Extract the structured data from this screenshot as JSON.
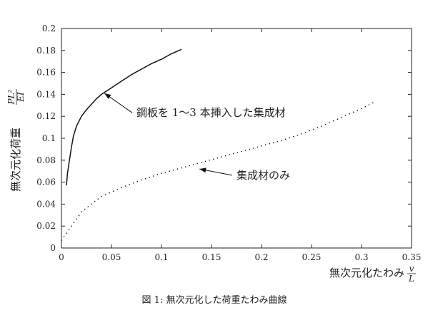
{
  "chart_data": {
    "type": "line",
    "title": "",
    "xlabel": "無次元化たわみ v/L",
    "xlabel_text": "無次元化たわみ",
    "xlabel_frac": {
      "num": "v",
      "den": "L"
    },
    "ylabel": "無次元化荷重 PL²/EI",
    "ylabel_text": "無次元化荷重",
    "ylabel_frac": {
      "num": "PL²",
      "den": "EI"
    },
    "xlim": [
      0,
      0.35
    ],
    "ylim": [
      0,
      0.2
    ],
    "x_ticks": [
      "0",
      "0.05",
      "0.1",
      "0.15",
      "0.2",
      "0.25",
      "0.3",
      "0.35"
    ],
    "y_ticks": [
      "0",
      "0.02",
      "0.04",
      "0.06",
      "0.08",
      "0.1",
      "0.12",
      "0.14",
      "0.16",
      "0.18",
      "0.2"
    ],
    "grid": false,
    "series": [
      {
        "name": "鋼板を 1〜3 本挿入した集成材",
        "style": "solid",
        "x": [
          0.005,
          0.006,
          0.008,
          0.01,
          0.012,
          0.015,
          0.02,
          0.025,
          0.03,
          0.035,
          0.04,
          0.05,
          0.06,
          0.07,
          0.08,
          0.09,
          0.1,
          0.11,
          0.12
        ],
        "y": [
          0.057,
          0.068,
          0.08,
          0.092,
          0.102,
          0.111,
          0.12,
          0.126,
          0.131,
          0.136,
          0.14,
          0.146,
          0.152,
          0.158,
          0.163,
          0.168,
          0.172,
          0.177,
          0.181
        ]
      },
      {
        "name": "集成材のみ",
        "style": "dotted",
        "x": [
          0.0,
          0.02,
          0.04,
          0.06,
          0.08,
          0.1,
          0.12,
          0.14,
          0.16,
          0.18,
          0.2,
          0.22,
          0.24,
          0.26,
          0.28,
          0.3,
          0.315
        ],
        "y": [
          0.007,
          0.033,
          0.047,
          0.055,
          0.062,
          0.068,
          0.073,
          0.078,
          0.083,
          0.088,
          0.093,
          0.098,
          0.104,
          0.111,
          0.119,
          0.127,
          0.134
        ]
      }
    ],
    "annotations": [
      {
        "text": "鋼板を 1〜3 本挿入した集成材",
        "point": [
          0.043,
          0.141
        ],
        "text_anchor": [
          0.075,
          0.12
        ]
      },
      {
        "text": "集成材のみ",
        "point": [
          0.138,
          0.072
        ],
        "text_anchor": [
          0.175,
          0.063
        ]
      }
    ],
    "caption": "図 1: 無次元化した荷重たわみ曲線"
  }
}
